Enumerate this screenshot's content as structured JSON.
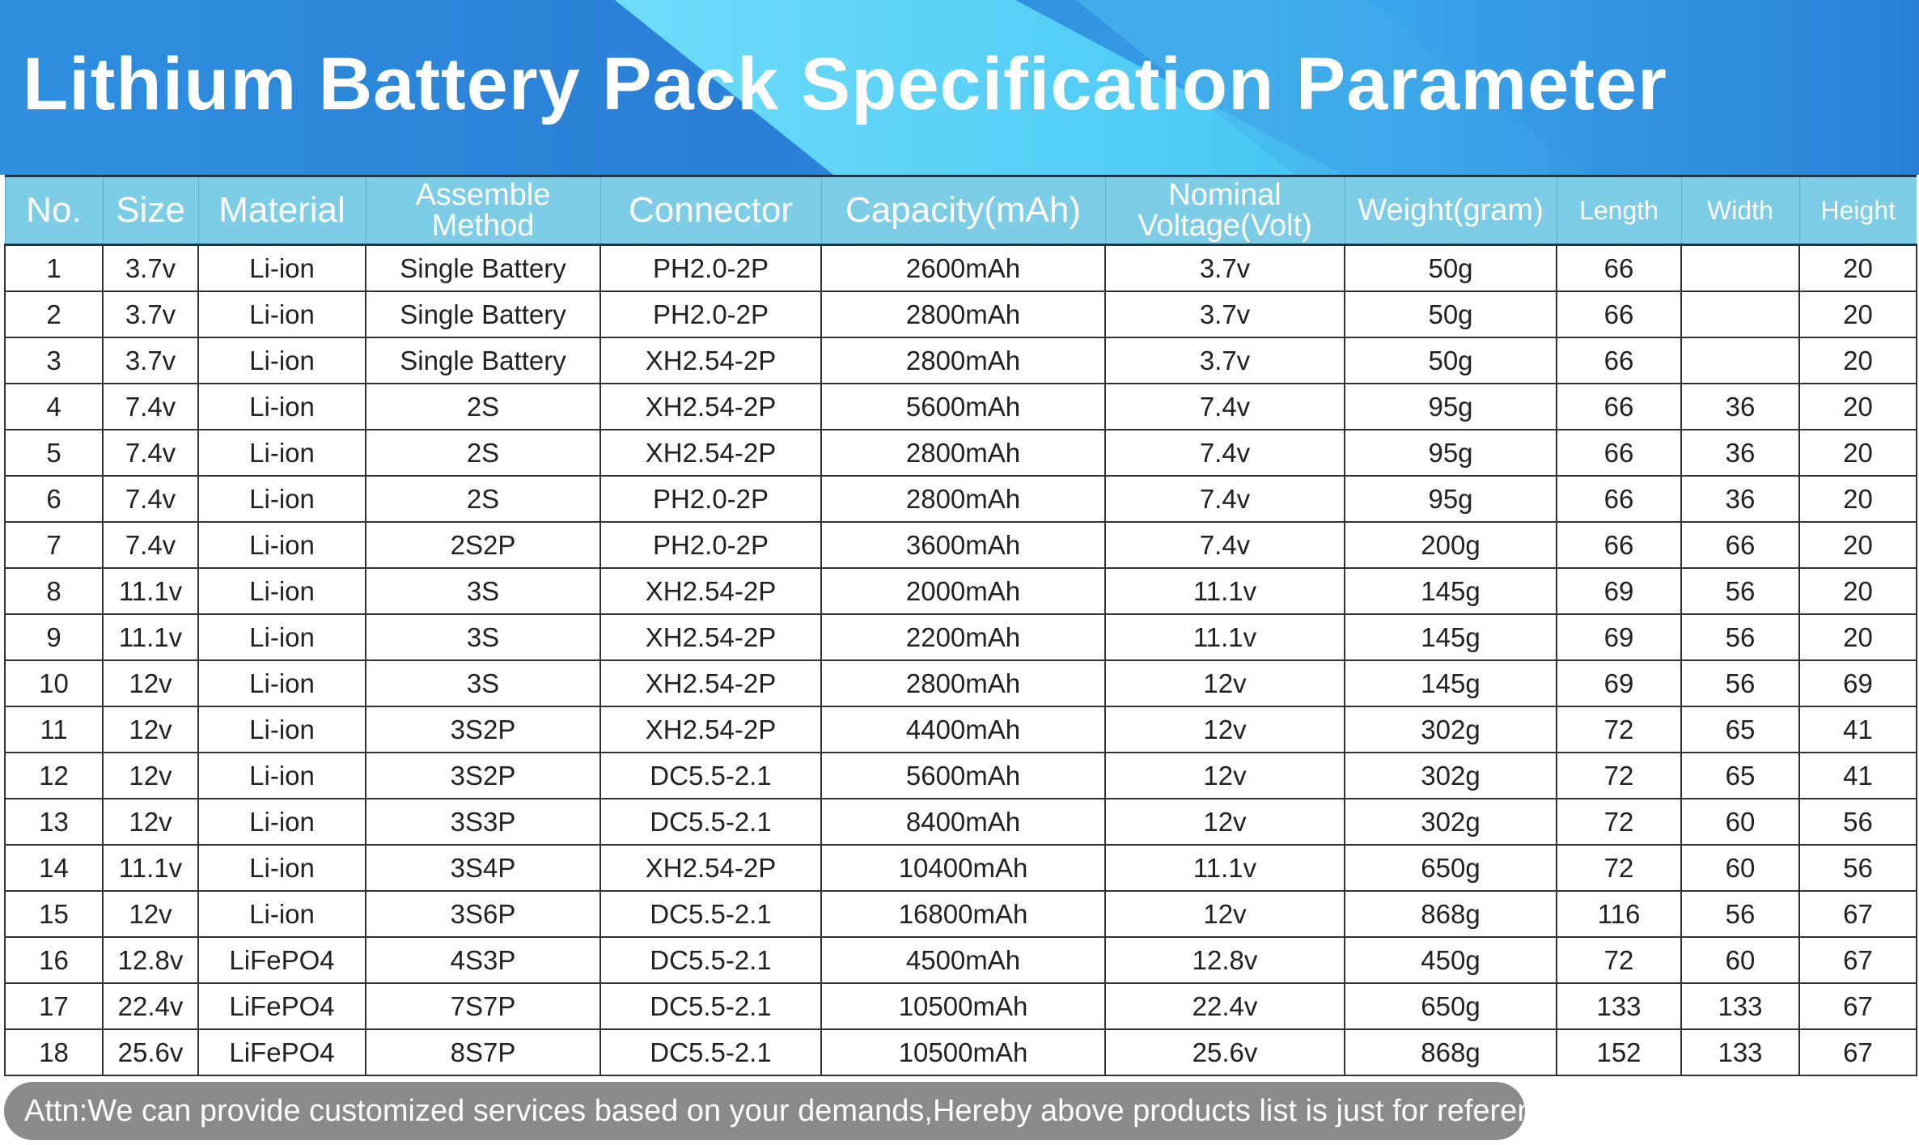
{
  "title": "Lithium Battery Pack Specification Parameter",
  "columns": [
    "No.",
    "Size",
    "Material",
    "Assemble Method",
    "Connector",
    "Capacity(mAh)",
    "Nominal Voltage(Volt)",
    "Weight(gram)",
    "Length",
    "Width",
    "Height"
  ],
  "rows": [
    [
      "1",
      "3.7v",
      "Li-ion",
      "Single Battery",
      "PH2.0-2P",
      "2600mAh",
      "3.7v",
      "50g",
      "66",
      "",
      "20"
    ],
    [
      "2",
      "3.7v",
      "Li-ion",
      "Single Battery",
      "PH2.0-2P",
      "2800mAh",
      "3.7v",
      "50g",
      "66",
      "",
      "20"
    ],
    [
      "3",
      "3.7v",
      "Li-ion",
      "Single Battery",
      "XH2.54-2P",
      "2800mAh",
      "3.7v",
      "50g",
      "66",
      "",
      "20"
    ],
    [
      "4",
      "7.4v",
      "Li-ion",
      "2S",
      "XH2.54-2P",
      "5600mAh",
      "7.4v",
      "95g",
      "66",
      "36",
      "20"
    ],
    [
      "5",
      "7.4v",
      "Li-ion",
      "2S",
      "XH2.54-2P",
      "2800mAh",
      "7.4v",
      "95g",
      "66",
      "36",
      "20"
    ],
    [
      "6",
      "7.4v",
      "Li-ion",
      "2S",
      "PH2.0-2P",
      "2800mAh",
      "7.4v",
      "95g",
      "66",
      "36",
      "20"
    ],
    [
      "7",
      "7.4v",
      "Li-ion",
      "2S2P",
      "PH2.0-2P",
      "3600mAh",
      "7.4v",
      "200g",
      "66",
      "66",
      "20"
    ],
    [
      "8",
      "11.1v",
      "Li-ion",
      "3S",
      "XH2.54-2P",
      "2000mAh",
      "11.1v",
      "145g",
      "69",
      "56",
      "20"
    ],
    [
      "9",
      "11.1v",
      "Li-ion",
      "3S",
      "XH2.54-2P",
      "2200mAh",
      "11.1v",
      "145g",
      "69",
      "56",
      "20"
    ],
    [
      "10",
      "12v",
      "Li-ion",
      "3S",
      "XH2.54-2P",
      "2800mAh",
      "12v",
      "145g",
      "69",
      "56",
      "69"
    ],
    [
      "11",
      "12v",
      "Li-ion",
      "3S2P",
      "XH2.54-2P",
      "4400mAh",
      "12v",
      "302g",
      "72",
      "65",
      "41"
    ],
    [
      "12",
      "12v",
      "Li-ion",
      "3S2P",
      "DC5.5-2.1",
      "5600mAh",
      "12v",
      "302g",
      "72",
      "65",
      "41"
    ],
    [
      "13",
      "12v",
      "Li-ion",
      "3S3P",
      "DC5.5-2.1",
      "8400mAh",
      "12v",
      "302g",
      "72",
      "60",
      "56"
    ],
    [
      "14",
      "11.1v",
      "Li-ion",
      "3S4P",
      "XH2.54-2P",
      "10400mAh",
      "11.1v",
      "650g",
      "72",
      "60",
      "56"
    ],
    [
      "15",
      "12v",
      "Li-ion",
      "3S6P",
      "DC5.5-2.1",
      "16800mAh",
      "12v",
      "868g",
      "116",
      "56",
      "67"
    ],
    [
      "16",
      "12.8v",
      "LiFePO4",
      "4S3P",
      "DC5.5-2.1",
      "4500mAh",
      "12.8v",
      "450g",
      "72",
      "60",
      "67"
    ],
    [
      "17",
      "22.4v",
      "LiFePO4",
      "7S7P",
      "DC5.5-2.1",
      "10500mAh",
      "22.4v",
      "650g",
      "133",
      "133",
      "67"
    ],
    [
      "18",
      "25.6v",
      "LiFePO4",
      "8S7P",
      "DC5.5-2.1",
      "10500mAh",
      "25.6v",
      "868g",
      "152",
      "133",
      "67"
    ]
  ],
  "footer": "Attn:We can provide customized  services based on your demands,Hereby  above products  list is just for reference only",
  "colors": {
    "header_bg": "#7dcde6",
    "banner": "#2a80d8",
    "footer_bg": "#8a8a8a"
  }
}
